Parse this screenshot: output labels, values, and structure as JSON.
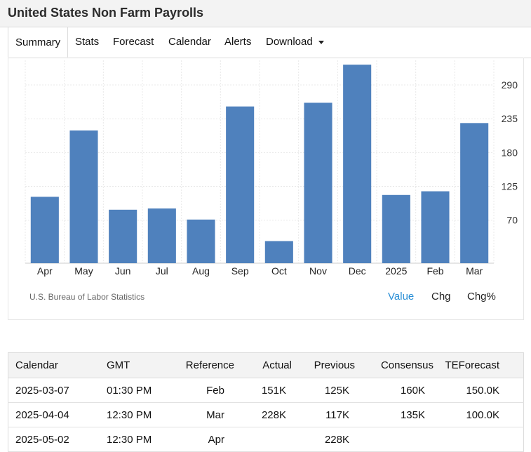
{
  "header": {
    "title": "United States Non Farm Payrolls"
  },
  "tabs": [
    {
      "label": "Summary",
      "active": true
    },
    {
      "label": "Stats"
    },
    {
      "label": "Forecast"
    },
    {
      "label": "Calendar"
    },
    {
      "label": "Alerts"
    },
    {
      "label": "Download",
      "dropdown": true
    }
  ],
  "chart_data": {
    "type": "bar",
    "categories": [
      "Apr",
      "May",
      "Jun",
      "Jul",
      "Aug",
      "Sep",
      "Oct",
      "Nov",
      "Dec",
      "2025",
      "Feb",
      "Mar"
    ],
    "values": [
      108,
      216,
      87,
      89,
      71,
      255,
      36,
      261,
      323,
      111,
      117,
      228
    ],
    "y_ticks": [
      70,
      125,
      180,
      235,
      290
    ],
    "ylim": [
      0,
      330
    ],
    "bar_color": "#4f81bd",
    "ytick_position": "right",
    "grid": true
  },
  "chart_footer": {
    "source": "U.S. Bureau of Labor Statistics",
    "toggles": [
      {
        "label": "Value",
        "selected": true
      },
      {
        "label": "Chg"
      },
      {
        "label": "Chg%"
      }
    ]
  },
  "calendar": {
    "columns": [
      "Calendar",
      "GMT",
      "Reference",
      "Actual",
      "Previous",
      "Consensus",
      "TEForecast"
    ],
    "rows": [
      [
        "2025-03-07",
        "01:30 PM",
        "Feb",
        "151K",
        "125K",
        "160K",
        "150.0K"
      ],
      [
        "2025-04-04",
        "12:30 PM",
        "Mar",
        "228K",
        "117K",
        "135K",
        "100.0K"
      ],
      [
        "2025-05-02",
        "12:30 PM",
        "Apr",
        "",
        "228K",
        "",
        ""
      ]
    ]
  },
  "colors": {
    "accent": "#2a8fd6",
    "bar": "#4f81bd"
  }
}
